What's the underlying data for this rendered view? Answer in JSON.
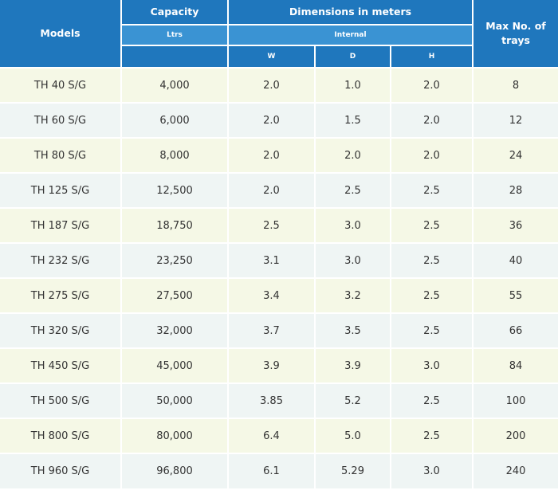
{
  "header": {
    "models": "Models",
    "capacity": "Capacity",
    "capacity_unit": "Ltrs",
    "dimensions": "Dimensions in meters",
    "internal": "Internal",
    "w": "W",
    "d": "D",
    "h": "H",
    "max_trays": "Max No. of trays"
  },
  "rows": [
    {
      "model": "TH 40 S/G",
      "capacity": "4,000",
      "w": "2.0",
      "d": "1.0",
      "h": "2.0",
      "trays": "8"
    },
    {
      "model": "TH 60 S/G",
      "capacity": "6,000",
      "w": "2.0",
      "d": "1.5",
      "h": "2.0",
      "trays": "12"
    },
    {
      "model": "TH 80 S/G",
      "capacity": "8,000",
      "w": "2.0",
      "d": "2.0",
      "h": "2.0",
      "trays": "24"
    },
    {
      "model": "TH 125 S/G",
      "capacity": "12,500",
      "w": "2.0",
      "d": "2.5",
      "h": "2.5",
      "trays": "28"
    },
    {
      "model": "TH 187 S/G",
      "capacity": "18,750",
      "w": "2.5",
      "d": "3.0",
      "h": "2.5",
      "trays": "36"
    },
    {
      "model": "TH 232 S/G",
      "capacity": "23,250",
      "w": "3.1",
      "d": "3.0",
      "h": "2.5",
      "trays": "40"
    },
    {
      "model": "TH 275 S/G",
      "capacity": "27,500",
      "w": "3.4",
      "d": "3.2",
      "h": "2.5",
      "trays": "55"
    },
    {
      "model": "TH 320 S/G",
      "capacity": "32,000",
      "w": "3.7",
      "d": "3.5",
      "h": "2.5",
      "trays": "66"
    },
    {
      "model": "TH 450 S/G",
      "capacity": "45,000",
      "w": "3.9",
      "d": "3.9",
      "h": "3.0",
      "trays": "84"
    },
    {
      "model": "TH 500 S/G",
      "capacity": "50,000",
      "w": "3.85",
      "d": "5.2",
      "h": "2.5",
      "trays": "100"
    },
    {
      "model": "TH 800 S/G",
      "capacity": "80,000",
      "w": "6.4",
      "d": "5.0",
      "h": "2.5",
      "trays": "200"
    },
    {
      "model": "TH 960 S/G",
      "capacity": "96,800",
      "w": "6.1",
      "d": "5.29",
      "h": "3.0",
      "trays": "240"
    }
  ]
}
